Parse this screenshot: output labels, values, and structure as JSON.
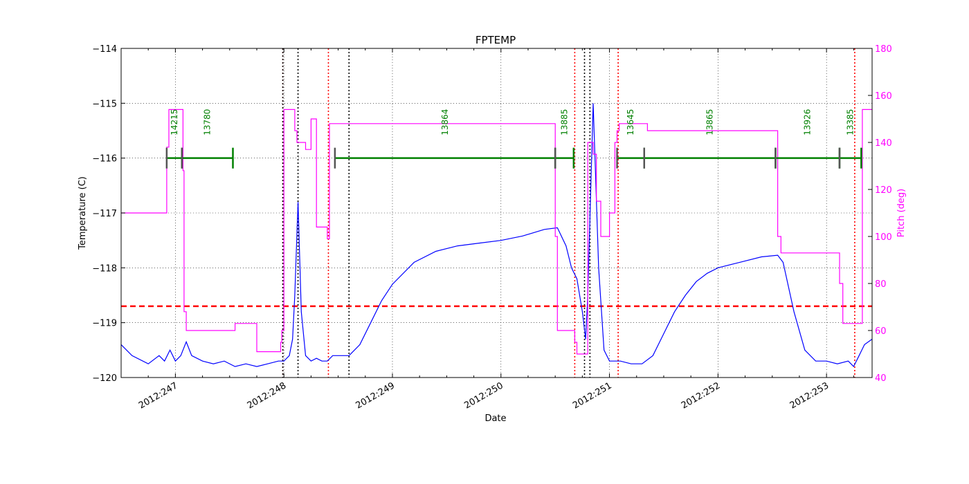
{
  "chart_data": {
    "type": "line",
    "title": "FPTEMP",
    "xlabel": "Date",
    "ylabel": "Temperature (C)",
    "y2label": "Pitch (deg)",
    "xlim": [
      246.5,
      253.42
    ],
    "ylim": [
      -120,
      -114
    ],
    "y2lim": [
      40,
      180
    ],
    "grid": true,
    "colors": {
      "temperature": "#0000ff",
      "pitch": "#ff00ff",
      "limit": "#ff0000",
      "obsids": "#008000",
      "obsid_marks": "#555555",
      "black_lines": "#000000",
      "red_lines": "#ff0000"
    },
    "x_ticks": [
      {
        "value": 247,
        "label": "2012:247"
      },
      {
        "value": 248,
        "label": "2012:248"
      },
      {
        "value": 249,
        "label": "2012:249"
      },
      {
        "value": 250,
        "label": "2012:250"
      },
      {
        "value": 251,
        "label": "2012:251"
      },
      {
        "value": 252,
        "label": "2012:252"
      },
      {
        "value": 253,
        "label": "2012:253"
      }
    ],
    "y_ticks": [
      {
        "value": -114,
        "label": "−114"
      },
      {
        "value": -115,
        "label": "−115"
      },
      {
        "value": -116,
        "label": "−116"
      },
      {
        "value": -117,
        "label": "−117"
      },
      {
        "value": -118,
        "label": "−118"
      },
      {
        "value": -119,
        "label": "−119"
      },
      {
        "value": -120,
        "label": "−120"
      }
    ],
    "y2_ticks": [
      {
        "value": 40,
        "label": "40"
      },
      {
        "value": 60,
        "label": "60"
      },
      {
        "value": 80,
        "label": "80"
      },
      {
        "value": 100,
        "label": "100"
      },
      {
        "value": 120,
        "label": "120"
      },
      {
        "value": 140,
        "label": "140"
      },
      {
        "value": 160,
        "label": "160"
      },
      {
        "value": 180,
        "label": "180"
      }
    ],
    "limit_line": -118.7,
    "black_vlines": [
      247.99,
      248.6,
      248.13,
      250.77,
      250.82
    ],
    "red_vlines": [
      247.99,
      248.41,
      250.68,
      251.08,
      253.26
    ],
    "series": [
      {
        "key": "temperature",
        "axis": "left",
        "x": [
          246.5,
          246.6,
          246.75,
          246.85,
          246.9,
          246.95,
          247.0,
          247.05,
          247.1,
          247.15,
          247.25,
          247.35,
          247.45,
          247.55,
          247.65,
          247.75,
          247.85,
          247.95,
          248.0,
          248.05,
          248.08,
          248.1,
          248.13,
          248.16,
          248.2,
          248.25,
          248.3,
          248.35,
          248.4,
          248.45,
          248.5,
          248.55,
          248.6,
          248.7,
          248.8,
          248.9,
          249.0,
          249.2,
          249.4,
          249.6,
          249.8,
          250.0,
          250.2,
          250.4,
          250.52,
          250.6,
          250.65,
          250.7,
          250.75,
          250.78,
          250.8,
          250.85,
          250.9,
          250.95,
          251.0,
          251.1,
          251.2,
          251.3,
          251.4,
          251.5,
          251.6,
          251.7,
          251.8,
          251.9,
          252.0,
          252.2,
          252.4,
          252.55,
          252.6,
          252.7,
          252.8,
          252.9,
          253.0,
          253.1,
          253.2,
          253.25,
          253.3,
          253.35,
          253.42
        ],
        "y": [
          -119.4,
          -119.6,
          -119.75,
          -119.6,
          -119.7,
          -119.5,
          -119.7,
          -119.6,
          -119.35,
          -119.6,
          -119.7,
          -119.75,
          -119.7,
          -119.8,
          -119.75,
          -119.8,
          -119.75,
          -119.7,
          -119.7,
          -119.6,
          -119.3,
          -118.5,
          -116.8,
          -118.8,
          -119.6,
          -119.7,
          -119.65,
          -119.7,
          -119.7,
          -119.6,
          -119.6,
          -119.6,
          -119.6,
          -119.4,
          -119.0,
          -118.6,
          -118.3,
          -117.9,
          -117.7,
          -117.6,
          -117.55,
          -117.5,
          -117.42,
          -117.3,
          -117.27,
          -117.6,
          -118.0,
          -118.2,
          -118.8,
          -119.3,
          -118.5,
          -115.0,
          -118.0,
          -119.5,
          -119.7,
          -119.7,
          -119.75,
          -119.75,
          -119.6,
          -119.2,
          -118.8,
          -118.5,
          -118.25,
          -118.1,
          -118.0,
          -117.9,
          -117.8,
          -117.77,
          -117.9,
          -118.8,
          -119.5,
          -119.7,
          -119.7,
          -119.75,
          -119.7,
          -119.8,
          -119.6,
          -119.4,
          -119.3
        ]
      },
      {
        "key": "pitch",
        "axis": "right",
        "x": [
          246.5,
          246.92,
          246.92,
          246.94,
          246.94,
          247.07,
          247.07,
          247.08,
          247.08,
          247.1,
          247.1,
          247.55,
          247.55,
          247.75,
          247.75,
          247.97,
          247.97,
          247.98,
          247.98,
          248.0,
          248.0,
          248.1,
          248.1,
          248.12,
          248.12,
          248.2,
          248.2,
          248.25,
          248.25,
          248.3,
          248.3,
          248.4,
          248.4,
          248.42,
          248.42,
          250.5,
          250.5,
          250.52,
          250.52,
          250.68,
          250.68,
          250.7,
          250.7,
          250.8,
          250.8,
          250.85,
          250.85,
          250.88,
          250.88,
          250.92,
          250.92,
          251.0,
          251.0,
          251.05,
          251.05,
          251.07,
          251.07,
          251.09,
          251.09,
          251.35,
          251.35,
          252.55,
          252.55,
          252.58,
          252.58,
          253.12,
          253.12,
          253.15,
          253.15,
          253.33,
          253.33,
          253.42
        ],
        "y": [
          110,
          110,
          138,
          138,
          154,
          154,
          128,
          128,
          68,
          68,
          60,
          60,
          63,
          63,
          51,
          51,
          55,
          55,
          60,
          60,
          154,
          154,
          145,
          145,
          140,
          140,
          137,
          137,
          150,
          150,
          104,
          104,
          99,
          99,
          148,
          148,
          100,
          100,
          60,
          60,
          55,
          55,
          50,
          50,
          140,
          140,
          135,
          135,
          115,
          115,
          100,
          100,
          110,
          110,
          140,
          140,
          145,
          145,
          148,
          148,
          145,
          145,
          100,
          100,
          93,
          93,
          80,
          80,
          63,
          63,
          154,
          154
        ]
      }
    ],
    "obsids": [
      {
        "label": "14215",
        "start": 246.92,
        "end": 247.06
      },
      {
        "label": "13780",
        "start": 247.06,
        "end": 247.53
      },
      {
        "label": "13864",
        "start": 248.47,
        "end": 250.5
      },
      {
        "label": "13885",
        "start": 250.5,
        "end": 250.67
      },
      {
        "label": "13645",
        "start": 251.07,
        "end": 251.32
      },
      {
        "label": "13865",
        "start": 251.32,
        "end": 252.53
      },
      {
        "label": "13926",
        "start": 252.53,
        "end": 253.12
      },
      {
        "label": "13385",
        "start": 253.12,
        "end": 253.32
      }
    ],
    "obsid_level": -116.0
  }
}
